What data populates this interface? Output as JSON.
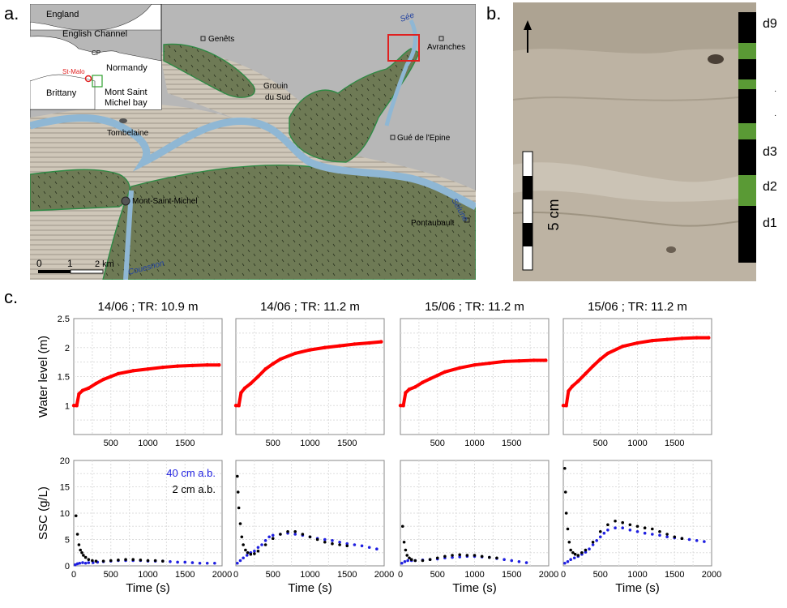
{
  "panels": {
    "a": "a.",
    "b": "b.",
    "c": "c."
  },
  "map": {
    "places": {
      "genets": "Genêts",
      "avranches": "Avranches",
      "grouin1": "Grouin",
      "grouin2": "du Sud",
      "tombelaine": "Tombelaine",
      "gue": "Gué de l'Epine",
      "msm": "Mont-Saint-Michel",
      "pontaubault": "Pontaubault"
    },
    "rivers": {
      "see": "Sée",
      "selune": "Sélune",
      "couesnon": "Couesnon"
    },
    "scale": {
      "t0": "0",
      "t1": "1",
      "t2": "2 km"
    },
    "inset": {
      "england": "England",
      "channel": "English Channel",
      "cp": "CP",
      "normandy": "Normandy",
      "stmalo": "St-Malo",
      "brittany": "Brittany",
      "bay1": "Mont Saint",
      "bay2": "Michel bay"
    },
    "colors": {
      "sea": "#b7b7b7",
      "river": "#8fb7d4",
      "salt_marsh": "#6e7a55",
      "marsh_edge": "#2f8a45",
      "flat": "#cfc7b9",
      "inset_red": "#e02020",
      "inset_green": "#30a030"
    }
  },
  "photo": {
    "scale_label": "5 cm",
    "layers": [
      "d9",
      "·",
      "·",
      "d3",
      "d2",
      "d1"
    ],
    "colors": {
      "sediment": "#bdb3a3",
      "band_dark": "#000000",
      "band_green": "#5a9a35"
    }
  },
  "chart_data": [
    {
      "type": "line",
      "title": "14/06 ; TR: 10.9 m",
      "ylabel": "Water level (m)",
      "xlabel": "",
      "xlim": [
        0,
        2000
      ],
      "ylim": [
        0.5,
        2.5
      ],
      "xticks": [
        "500",
        "1000",
        "1500"
      ],
      "yticks": [
        "1",
        "1.5",
        "2",
        "2.5"
      ],
      "series": [
        {
          "color": "#ff0000",
          "x": [
            0,
            40,
            70,
            120,
            200,
            300,
            400,
            500,
            600,
            800,
            1000,
            1200,
            1400,
            1600,
            1800,
            1960
          ],
          "y": [
            1.0,
            1.0,
            1.2,
            1.26,
            1.3,
            1.38,
            1.45,
            1.5,
            1.55,
            1.6,
            1.63,
            1.66,
            1.68,
            1.69,
            1.7,
            1.7
          ]
        }
      ]
    },
    {
      "type": "line",
      "title": "14/06 ; TR: 11.2 m",
      "ylabel": "",
      "xlabel": "",
      "xlim": [
        0,
        2000
      ],
      "ylim": [
        0.5,
        2.5
      ],
      "xticks": [
        "500",
        "1000",
        "1500"
      ],
      "yticks": [],
      "series": [
        {
          "color": "#ff0000",
          "x": [
            0,
            40,
            70,
            120,
            200,
            300,
            400,
            500,
            600,
            800,
            1000,
            1200,
            1400,
            1600,
            1800,
            1960
          ],
          "y": [
            1.0,
            1.0,
            1.22,
            1.3,
            1.38,
            1.5,
            1.63,
            1.72,
            1.8,
            1.9,
            1.96,
            2.0,
            2.03,
            2.06,
            2.08,
            2.1
          ]
        }
      ]
    },
    {
      "type": "line",
      "title": "15/06 ; TR: 11.2 m",
      "ylabel": "",
      "xlabel": "",
      "xlim": [
        0,
        2000
      ],
      "ylim": [
        0.5,
        2.5
      ],
      "xticks": [
        "500",
        "1000",
        "1500"
      ],
      "yticks": [],
      "series": [
        {
          "color": "#ff0000",
          "x": [
            0,
            40,
            70,
            120,
            200,
            300,
            400,
            500,
            600,
            800,
            1000,
            1200,
            1400,
            1600,
            1800,
            1960
          ],
          "y": [
            1.0,
            1.0,
            1.22,
            1.28,
            1.32,
            1.4,
            1.46,
            1.52,
            1.58,
            1.65,
            1.7,
            1.73,
            1.76,
            1.77,
            1.78,
            1.78
          ]
        }
      ]
    },
    {
      "type": "line",
      "title": "15/06 ; TR: 11.2 m",
      "ylabel": "",
      "xlabel": "",
      "xlim": [
        0,
        2000
      ],
      "ylim": [
        0.5,
        2.5
      ],
      "xticks": [
        "500",
        "1000",
        "1500"
      ],
      "yticks": [],
      "series": [
        {
          "color": "#ff0000",
          "x": [
            0,
            40,
            70,
            120,
            200,
            300,
            400,
            500,
            600,
            800,
            1000,
            1200,
            1400,
            1600,
            1800,
            1960
          ],
          "y": [
            1.0,
            1.0,
            1.25,
            1.33,
            1.42,
            1.55,
            1.68,
            1.8,
            1.9,
            2.02,
            2.08,
            2.12,
            2.14,
            2.16,
            2.17,
            2.17
          ]
        }
      ]
    },
    {
      "type": "scatter",
      "title": "",
      "ylabel": "SSC (g/L)",
      "xlabel": "Time (s)",
      "xlim": [
        0,
        2000
      ],
      "ylim": [
        0,
        20
      ],
      "xticks": [
        "0",
        "500",
        "1000",
        "1500",
        "2000"
      ],
      "yticks": [
        "0",
        "5",
        "10",
        "15",
        "20"
      ],
      "legend": [
        "40 cm a.b.",
        "2 cm a.b."
      ],
      "series": [
        {
          "color": "#1f1fe0",
          "x": [
            20,
            50,
            80,
            120,
            160,
            200,
            260,
            320,
            400,
            500,
            600,
            700,
            800,
            900,
            1000,
            1100,
            1200,
            1300,
            1400,
            1500,
            1600,
            1700,
            1800,
            1900
          ],
          "y": [
            0.2,
            0.4,
            0.5,
            0.6,
            0.5,
            0.6,
            0.6,
            0.7,
            0.8,
            0.9,
            1.0,
            1.0,
            1.0,
            1.0,
            0.9,
            0.9,
            0.9,
            0.8,
            0.7,
            0.7,
            0.6,
            0.5,
            0.5,
            0.5
          ]
        },
        {
          "color": "#000000",
          "x": [
            30,
            50,
            70,
            90,
            110,
            130,
            160,
            200,
            250,
            300,
            400,
            500,
            600,
            700,
            800,
            900,
            1000,
            1100,
            1200
          ],
          "y": [
            9.5,
            6.0,
            4.0,
            3.0,
            2.5,
            2.0,
            1.6,
            1.2,
            1.0,
            0.9,
            0.9,
            1.0,
            1.1,
            1.2,
            1.2,
            1.1,
            1.0,
            1.0,
            0.9
          ]
        }
      ]
    },
    {
      "type": "scatter",
      "title": "",
      "ylabel": "",
      "xlabel": "Time (s)",
      "xlim": [
        0,
        2000
      ],
      "ylim": [
        0,
        20
      ],
      "xticks": [
        "0",
        "500",
        "1000",
        "1500",
        "2000"
      ],
      "yticks": [],
      "series": [
        {
          "color": "#1f1fe0",
          "x": [
            20,
            60,
            100,
            150,
            200,
            250,
            300,
            350,
            400,
            450,
            500,
            600,
            700,
            800,
            900,
            1000,
            1100,
            1200,
            1300,
            1400,
            1500,
            1600,
            1700,
            1800,
            1900
          ],
          "y": [
            0.5,
            1.0,
            1.5,
            2.0,
            2.5,
            2.8,
            3.5,
            4.0,
            4.8,
            5.5,
            5.8,
            6.0,
            6.2,
            6.0,
            5.8,
            5.5,
            5.2,
            5.0,
            4.8,
            4.5,
            4.2,
            4.0,
            3.8,
            3.5,
            3.2
          ]
        },
        {
          "color": "#000000",
          "x": [
            20,
            30,
            40,
            60,
            80,
            100,
            130,
            160,
            200,
            250,
            300,
            400,
            500,
            600,
            700,
            800,
            900,
            1000,
            1100,
            1200,
            1300,
            1400,
            1500
          ],
          "y": [
            17.0,
            14.0,
            11.0,
            8.0,
            5.5,
            4.0,
            3.0,
            2.5,
            2.2,
            2.3,
            2.8,
            4.0,
            5.2,
            6.0,
            6.5,
            6.5,
            6.0,
            5.5,
            5.0,
            4.5,
            4.2,
            4.0,
            3.8
          ]
        }
      ]
    },
    {
      "type": "scatter",
      "title": "",
      "ylabel": "",
      "xlabel": "Time (s)",
      "xlim": [
        0,
        2000
      ],
      "ylim": [
        0,
        20
      ],
      "xticks": [
        "0",
        "500",
        "1000",
        "1500",
        "2000"
      ],
      "yticks": [],
      "series": [
        {
          "color": "#1f1fe0",
          "x": [
            20,
            60,
            100,
            150,
            200,
            300,
            400,
            500,
            600,
            700,
            800,
            900,
            1000,
            1100,
            1200,
            1300,
            1400,
            1500,
            1600,
            1700
          ],
          "y": [
            0.5,
            0.8,
            1.0,
            1.0,
            1.0,
            1.1,
            1.2,
            1.3,
            1.5,
            1.6,
            1.7,
            1.8,
            1.8,
            1.7,
            1.6,
            1.4,
            1.2,
            1.0,
            0.8,
            0.6
          ]
        },
        {
          "color": "#000000",
          "x": [
            30,
            50,
            70,
            90,
            120,
            150,
            200,
            300,
            400,
            500,
            600,
            700,
            800,
            900,
            1000,
            1100,
            1200,
            1300
          ],
          "y": [
            7.5,
            4.5,
            3.0,
            2.0,
            1.5,
            1.2,
            1.0,
            1.0,
            1.2,
            1.5,
            1.8,
            2.0,
            2.1,
            2.0,
            2.0,
            1.8,
            1.6,
            1.5
          ]
        }
      ]
    },
    {
      "type": "scatter",
      "title": "",
      "ylabel": "",
      "xlabel": "Time (s)",
      "xlim": [
        0,
        2000
      ],
      "ylim": [
        0,
        20
      ],
      "xticks": [
        "0",
        "500",
        "1000",
        "1500",
        "2000"
      ],
      "yticks": [],
      "series": [
        {
          "color": "#1f1fe0",
          "x": [
            20,
            60,
            100,
            150,
            200,
            250,
            300,
            350,
            400,
            450,
            500,
            550,
            600,
            700,
            800,
            900,
            1000,
            1100,
            1200,
            1300,
            1400,
            1500,
            1600,
            1700,
            1800,
            1900
          ],
          "y": [
            0.5,
            0.8,
            1.2,
            1.5,
            1.8,
            2.2,
            2.6,
            3.2,
            4.0,
            4.8,
            5.5,
            6.2,
            6.8,
            7.2,
            7.2,
            6.8,
            6.5,
            6.2,
            6.0,
            5.8,
            5.5,
            5.3,
            5.2,
            5.0,
            4.8,
            4.6
          ]
        },
        {
          "color": "#000000",
          "x": [
            20,
            30,
            40,
            60,
            80,
            100,
            130,
            160,
            200,
            250,
            300,
            400,
            500,
            600,
            700,
            800,
            900,
            1000,
            1100,
            1200,
            1300,
            1400,
            1500,
            1600
          ],
          "y": [
            18.5,
            14.0,
            10.0,
            7.0,
            4.5,
            3.0,
            2.5,
            2.2,
            2.0,
            2.5,
            3.0,
            4.5,
            6.5,
            7.8,
            8.5,
            8.2,
            7.8,
            7.5,
            7.2,
            7.0,
            6.5,
            6.0,
            5.5,
            5.2
          ]
        }
      ]
    }
  ]
}
